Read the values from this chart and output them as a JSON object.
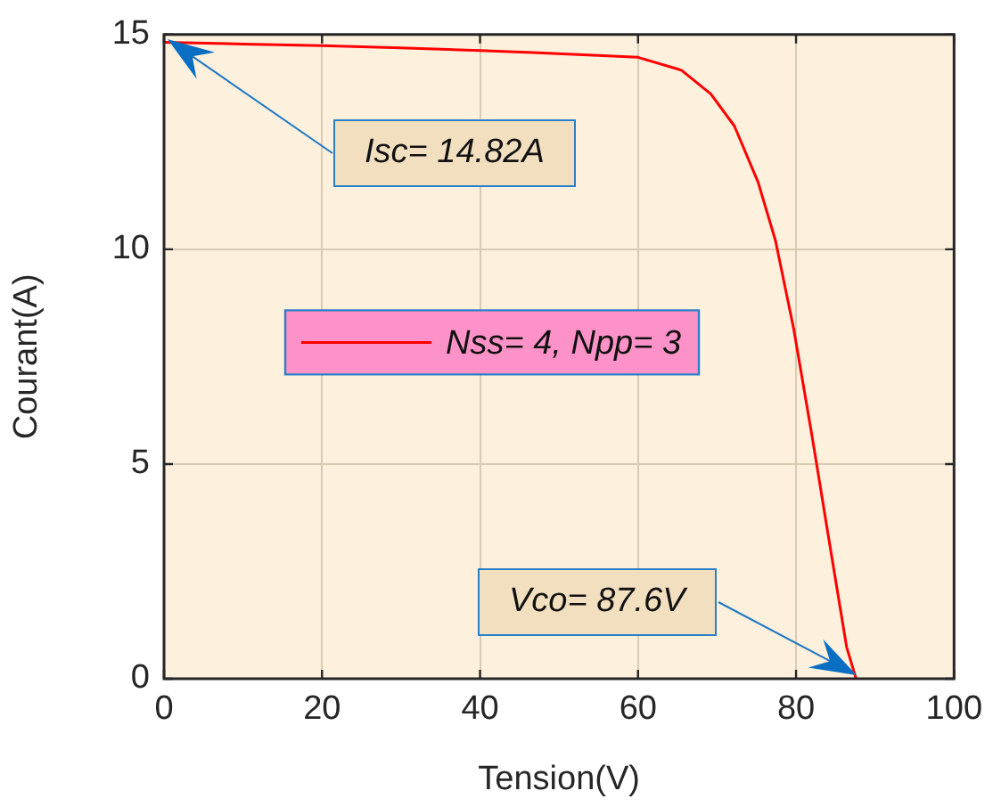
{
  "chart_data": {
    "type": "line",
    "xlabel": "Tension(V)",
    "ylabel": "Courant(A)",
    "x": [
      0,
      10,
      20,
      30,
      40,
      46.7,
      60,
      65.5,
      69.2,
      72.2,
      75.2,
      77.4,
      79.7,
      82.0,
      84.2,
      86.4,
      87.6
    ],
    "series": [
      {
        "name": "Nss= 4, Npp= 3",
        "color": "#ff0000",
        "values": [
          14.82,
          14.78,
          14.74,
          14.69,
          14.63,
          14.58,
          14.47,
          14.17,
          13.62,
          12.87,
          11.56,
          10.2,
          8.15,
          5.68,
          3.2,
          0.74,
          0
        ]
      }
    ],
    "xlim": [
      0,
      100
    ],
    "xticks": [
      0,
      20,
      40,
      60,
      80,
      100
    ],
    "ylim": [
      0,
      15
    ],
    "yticks": [
      0,
      5,
      10,
      15
    ],
    "annotations": [
      "Isc= 14.82A",
      "Vco= 87.6V"
    ],
    "grid": true,
    "legend": "left",
    "marker": "none",
    "line_style": "solid"
  }
}
